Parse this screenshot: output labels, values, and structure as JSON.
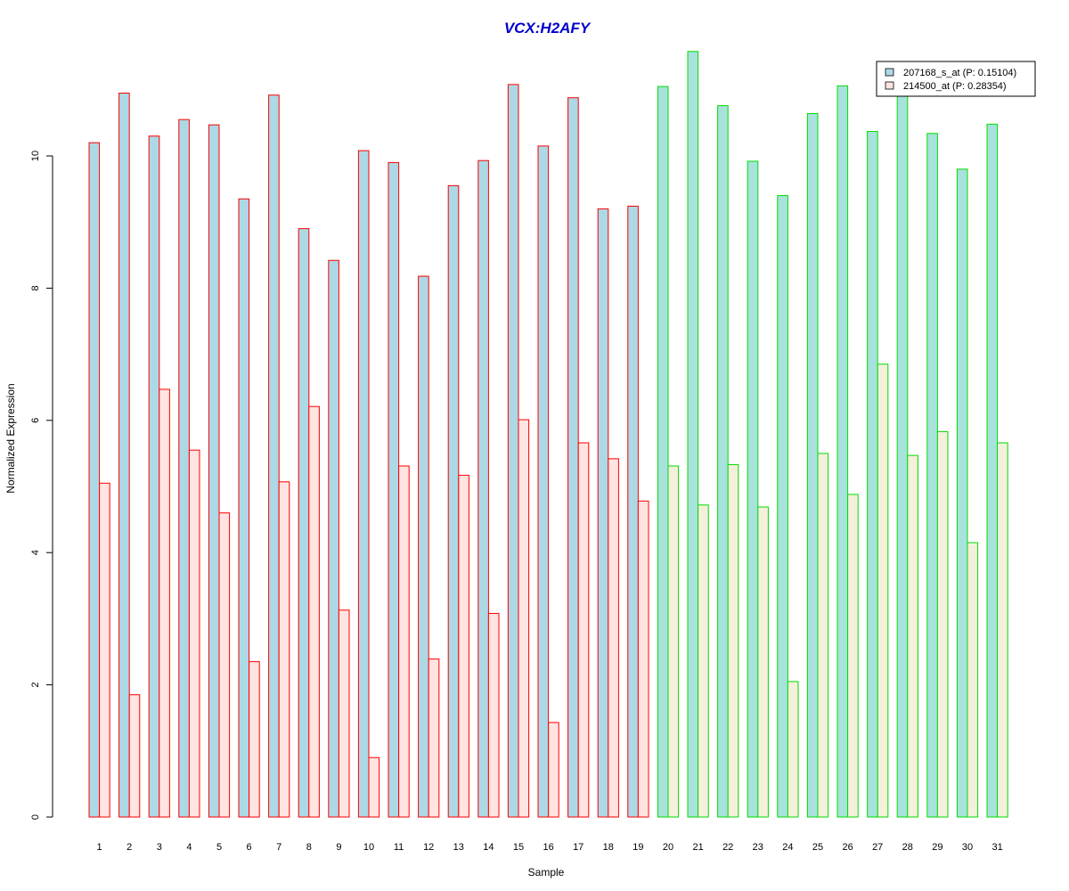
{
  "chart_data": {
    "type": "bar",
    "title": "VCX:H2AFY",
    "xlabel": "Sample",
    "ylabel": "Normalized Expression",
    "ylim": [
      0,
      11.6
    ],
    "yticks": [
      0,
      2,
      4,
      6,
      8,
      10
    ],
    "categories": [
      "1",
      "2",
      "3",
      "4",
      "5",
      "6",
      "7",
      "8",
      "9",
      "10",
      "11",
      "12",
      "13",
      "14",
      "15",
      "16",
      "17",
      "18",
      "19",
      "20",
      "21",
      "22",
      "23",
      "24",
      "25",
      "26",
      "27",
      "28",
      "29",
      "30",
      "31"
    ],
    "series": [
      {
        "name": "207168_s_at (P: 0.15104)",
        "values": [
          10.2,
          10.95,
          10.3,
          10.55,
          10.47,
          9.35,
          10.92,
          8.9,
          8.42,
          10.08,
          9.9,
          8.18,
          9.55,
          9.93,
          11.08,
          10.15,
          10.88,
          9.2,
          9.24,
          11.05,
          11.58,
          10.76,
          9.92,
          9.4,
          10.64,
          11.06,
          10.37,
          11.05,
          10.34,
          9.8,
          10.48
        ]
      },
      {
        "name": "214500_at (P: 0.28354)",
        "values": [
          5.05,
          1.85,
          6.47,
          5.55,
          4.6,
          2.35,
          5.07,
          6.21,
          3.13,
          0.9,
          5.31,
          2.39,
          5.17,
          3.08,
          6.01,
          1.43,
          5.66,
          5.42,
          4.78,
          5.31,
          4.72,
          5.33,
          4.69,
          2.05,
          5.5,
          4.88,
          6.85,
          5.47,
          5.83,
          4.15,
          5.66
        ]
      }
    ],
    "group_border_colors": {
      "samples_1_19": "#ff0000",
      "samples_20_31": "#00dd00"
    },
    "fill_colors": {
      "series1_group1": "#add8e6",
      "series2_group1": "#ffe4e1",
      "series1_group2": "#a8e2dd",
      "series2_group2": "#f5f0dc"
    },
    "title_color": "#0000cc",
    "legend_position": "top-right",
    "grid": false
  }
}
